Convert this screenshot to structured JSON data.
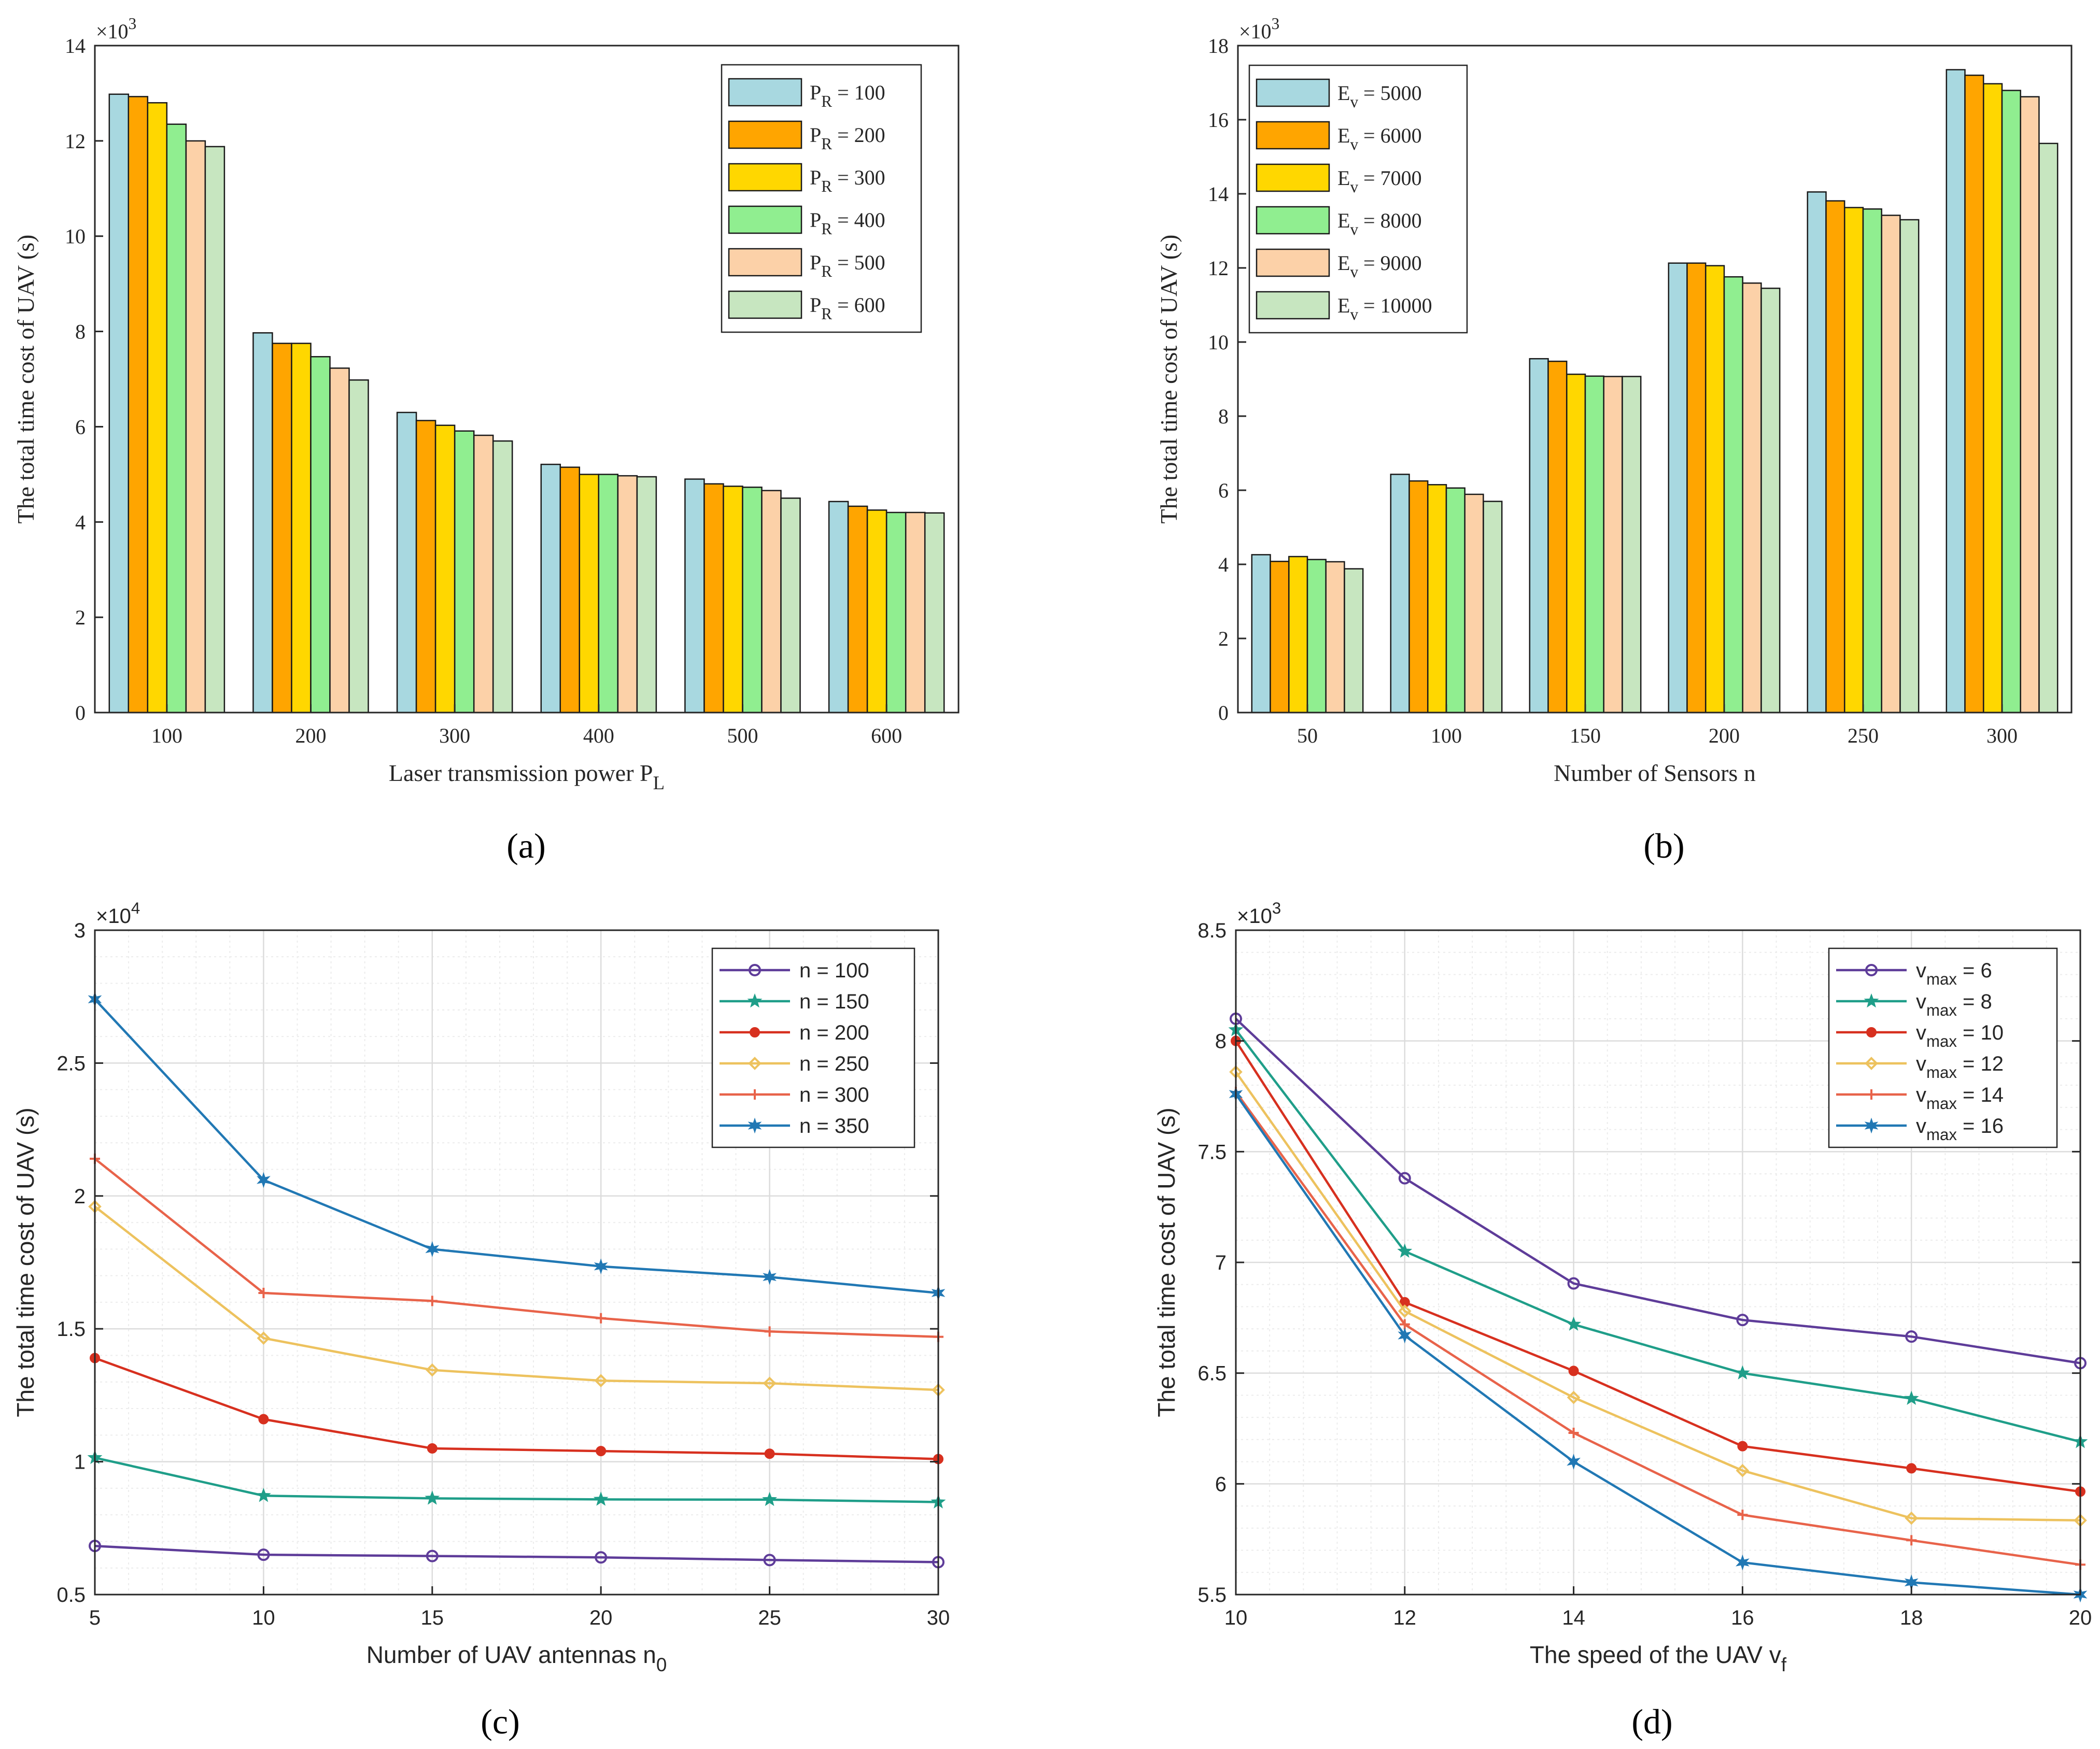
{
  "chart_data": [
    {
      "id": "a",
      "type": "bar",
      "caption": "(a)",
      "categories": [
        "100",
        "200",
        "300",
        "400",
        "500",
        "600"
      ],
      "ylabel": "The total time cost of UAV (s)",
      "xlabel": "Laser transmission power P",
      "xlabel_sub": "L",
      "exponent_label": "×10",
      "exponent_power": "3",
      "ylim": [
        0,
        14
      ],
      "yticks": [
        0,
        2,
        4,
        6,
        8,
        10,
        12,
        14
      ],
      "legend_position": "top-right",
      "series": [
        {
          "name": "P",
          "sub": "R",
          "suffix": " = 100",
          "color": "#a8d8e0",
          "values": [
            12.98,
            7.97,
            6.3,
            5.21,
            4.9,
            4.43
          ]
        },
        {
          "name": "P",
          "sub": "R",
          "suffix": " = 200",
          "color": "#ffa500",
          "values": [
            12.93,
            7.75,
            6.13,
            5.15,
            4.8,
            4.33
          ]
        },
        {
          "name": "P",
          "sub": "R",
          "suffix": " = 300",
          "color": "#ffd700",
          "values": [
            12.8,
            7.75,
            6.03,
            5.0,
            4.75,
            4.25
          ]
        },
        {
          "name": "P",
          "sub": "R",
          "suffix": " = 400",
          "color": "#90ee90",
          "values": [
            12.35,
            7.47,
            5.91,
            5.0,
            4.73,
            4.2
          ]
        },
        {
          "name": "P",
          "sub": "R",
          "suffix": " = 500",
          "color": "#fcd1a8",
          "values": [
            12.0,
            7.23,
            5.82,
            4.97,
            4.66,
            4.2
          ]
        },
        {
          "name": "P",
          "sub": "R",
          "suffix": " = 600",
          "color": "#c7e6c0",
          "values": [
            11.88,
            6.98,
            5.7,
            4.95,
            4.5,
            4.19
          ]
        }
      ]
    },
    {
      "id": "b",
      "type": "bar",
      "caption": "(b)",
      "categories": [
        "50",
        "100",
        "150",
        "200",
        "250",
        "300"
      ],
      "ylabel": "The total time cost of UAV (s)",
      "xlabel": "Number of Sensors n",
      "xlabel_sub": "",
      "exponent_label": "×10",
      "exponent_power": "3",
      "ylim": [
        0,
        18
      ],
      "yticks": [
        0,
        2,
        4,
        6,
        8,
        10,
        12,
        14,
        16,
        18
      ],
      "legend_position": "top-left",
      "series": [
        {
          "name": "E",
          "sub": "v",
          "suffix": " = 5000",
          "color": "#a8d8e0",
          "values": [
            4.26,
            6.43,
            9.55,
            12.13,
            14.05,
            17.35
          ]
        },
        {
          "name": "E",
          "sub": "v",
          "suffix": " = 6000",
          "color": "#ffa500",
          "values": [
            4.08,
            6.25,
            9.48,
            12.13,
            13.81,
            17.2
          ]
        },
        {
          "name": "E",
          "sub": "v",
          "suffix": " = 7000",
          "color": "#ffd700",
          "values": [
            4.21,
            6.15,
            9.13,
            12.06,
            13.63,
            16.97
          ]
        },
        {
          "name": "E",
          "sub": "v",
          "suffix": " = 8000",
          "color": "#90ee90",
          "values": [
            4.13,
            6.06,
            9.08,
            11.76,
            13.59,
            16.79
          ]
        },
        {
          "name": "E",
          "sub": "v",
          "suffix": " = 9000",
          "color": "#fcd1a8",
          "values": [
            4.07,
            5.89,
            9.07,
            11.59,
            13.42,
            16.62
          ]
        },
        {
          "name": "E",
          "sub": "v",
          "suffix": " = 10000",
          "color": "#c7e6c0",
          "values": [
            3.88,
            5.7,
            9.07,
            11.45,
            13.3,
            15.36
          ]
        }
      ]
    },
    {
      "id": "c",
      "type": "line",
      "caption": "(c)",
      "x": [
        5,
        10,
        15,
        20,
        25,
        30
      ],
      "xticks": [
        5,
        10,
        15,
        20,
        25,
        30
      ],
      "xlim": [
        5,
        30
      ],
      "ylabel": "The total time cost of UAV (s)",
      "xlabel": "Number of UAV antennas n",
      "xlabel_sub": "0",
      "exponent_label": "×10",
      "exponent_power": "4",
      "ylim": [
        0.5,
        3
      ],
      "yticks": [
        0.5,
        1,
        1.5,
        2,
        2.5,
        3
      ],
      "ytick_labels": [
        "0.5",
        "1",
        "1.5",
        "2",
        "2.5",
        "3"
      ],
      "legend_position": "top-right",
      "series": [
        {
          "name": "n",
          "sub": "",
          "suffix": " = 100",
          "color": "#5e3c99",
          "marker": "circle",
          "values": [
            0.683,
            0.65,
            0.645,
            0.64,
            0.63,
            0.622
          ]
        },
        {
          "name": "n",
          "sub": "",
          "suffix": " = 150",
          "color": "#1f9e89",
          "marker": "star",
          "values": [
            1.015,
            0.872,
            0.862,
            0.858,
            0.857,
            0.848
          ]
        },
        {
          "name": "n",
          "sub": "",
          "suffix": " = 200",
          "color": "#d7301f",
          "marker": "dot",
          "values": [
            1.39,
            1.16,
            1.05,
            1.04,
            1.03,
            1.01
          ]
        },
        {
          "name": "n",
          "sub": "",
          "suffix": " = 250",
          "color": "#edc25e",
          "marker": "diamond",
          "values": [
            1.96,
            1.465,
            1.345,
            1.305,
            1.295,
            1.27
          ]
        },
        {
          "name": "n",
          "sub": "",
          "suffix": " = 300",
          "color": "#e8634a",
          "marker": "plus",
          "values": [
            2.14,
            1.635,
            1.605,
            1.54,
            1.49,
            1.47
          ]
        },
        {
          "name": "n",
          "sub": "",
          "suffix": " = 350",
          "color": "#2178b4",
          "marker": "hexstar",
          "values": [
            2.74,
            2.06,
            1.8,
            1.735,
            1.695,
            1.635
          ]
        }
      ]
    },
    {
      "id": "d",
      "type": "line",
      "caption": "(d)",
      "x": [
        10,
        12,
        14,
        16,
        18,
        20
      ],
      "xticks": [
        10,
        12,
        14,
        16,
        18,
        20
      ],
      "xlim": [
        10,
        20
      ],
      "ylabel": "The total time cost of UAV (s)",
      "xlabel": "The speed of the UAV v",
      "xlabel_sub": "f",
      "exponent_label": "×10",
      "exponent_power": "3",
      "ylim": [
        5.5,
        8.5
      ],
      "yticks": [
        5.5,
        6,
        6.5,
        7,
        7.5,
        8,
        8.5
      ],
      "ytick_labels": [
        "5.5",
        "6",
        "6.5",
        "7",
        "7.5",
        "8",
        "8.5"
      ],
      "legend_position": "top-right",
      "series": [
        {
          "name": "v",
          "sub": "max",
          "suffix": " = 6",
          "color": "#5e3c99",
          "marker": "circle",
          "values": [
            8.1,
            7.38,
            6.905,
            6.74,
            6.665,
            6.545
          ]
        },
        {
          "name": "v",
          "sub": "max",
          "suffix": " = 8",
          "color": "#1f9e89",
          "marker": "star",
          "values": [
            8.05,
            7.05,
            6.72,
            6.5,
            6.385,
            6.19
          ]
        },
        {
          "name": "v",
          "sub": "max",
          "suffix": " = 10",
          "color": "#d7301f",
          "marker": "dot",
          "values": [
            8.0,
            6.82,
            6.51,
            6.17,
            6.07,
            5.965
          ]
        },
        {
          "name": "v",
          "sub": "max",
          "suffix": " = 12",
          "color": "#edc25e",
          "marker": "diamond",
          "values": [
            7.86,
            6.78,
            6.39,
            6.06,
            5.845,
            5.835
          ]
        },
        {
          "name": "v",
          "sub": "max",
          "suffix": " = 14",
          "color": "#e8634a",
          "marker": "plus",
          "values": [
            7.77,
            6.72,
            6.23,
            5.86,
            5.745,
            5.635
          ]
        },
        {
          "name": "v",
          "sub": "max",
          "suffix": " = 16",
          "color": "#2178b4",
          "marker": "hexstar",
          "values": [
            7.76,
            6.67,
            6.1,
            5.645,
            5.555,
            5.5
          ]
        }
      ]
    }
  ]
}
